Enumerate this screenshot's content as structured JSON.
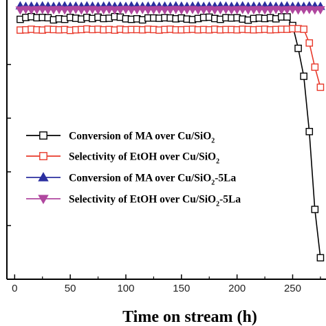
{
  "chart_data": {
    "type": "line",
    "xlabel": "Time on stream (h)",
    "ylabel": "",
    "xlim": [
      -7,
      280
    ],
    "ylim": [
      0,
      104
    ],
    "x_ticks": [
      0,
      50,
      100,
      150,
      200,
      250
    ],
    "x_tick_labels": [
      "0",
      "50",
      "100",
      "150",
      "200",
      "250"
    ],
    "grid": false,
    "legend_position": "center-left",
    "series": [
      {
        "name": "Conversion of MA over Cu/SiO2",
        "label_parts": [
          {
            "text": "Conversion of MA over Cu/SiO",
            "sub": false
          },
          {
            "text": "2",
            "sub": true
          }
        ],
        "color": "#000000",
        "marker": "open-square",
        "x": [
          5,
          10,
          15,
          20,
          25,
          30,
          35,
          40,
          45,
          50,
          55,
          60,
          65,
          70,
          75,
          80,
          85,
          90,
          95,
          100,
          105,
          110,
          115,
          120,
          125,
          130,
          135,
          140,
          145,
          150,
          155,
          160,
          165,
          170,
          175,
          180,
          185,
          190,
          195,
          200,
          205,
          210,
          215,
          220,
          225,
          230,
          235,
          240,
          245,
          250,
          255,
          260,
          265,
          270,
          275
        ],
        "y": [
          96.8,
          97.5,
          97.8,
          97.4,
          97.5,
          97.4,
          96.6,
          97.0,
          96.8,
          97.5,
          97.2,
          96.9,
          97.5,
          97.1,
          97.6,
          97.1,
          97.2,
          97.8,
          97.6,
          97.0,
          96.8,
          97.0,
          96.6,
          97.3,
          97.3,
          97.2,
          97.4,
          97.3,
          97.0,
          97.3,
          96.9,
          96.7,
          97.1,
          97.5,
          97.6,
          97.1,
          96.8,
          97.4,
          97.3,
          97.4,
          96.9,
          96.5,
          97.1,
          97.3,
          97.1,
          97.4,
          97.0,
          97.7,
          97.7,
          94.5,
          86.0,
          75.6,
          55.0,
          26.0,
          8.0
        ]
      },
      {
        "name": "Selectivity of EtOH over Cu/SiO2",
        "label_parts": [
          {
            "text": "Selectivity of EtOH over Cu/SiO",
            "sub": false
          },
          {
            "text": "2",
            "sub": true
          }
        ],
        "color": "#e8382a",
        "marker": "open-square",
        "x": [
          5,
          10,
          15,
          20,
          25,
          30,
          35,
          40,
          45,
          50,
          55,
          60,
          65,
          70,
          75,
          80,
          85,
          90,
          95,
          100,
          105,
          110,
          115,
          120,
          125,
          130,
          135,
          140,
          145,
          150,
          155,
          160,
          165,
          170,
          175,
          180,
          185,
          190,
          195,
          200,
          205,
          210,
          215,
          220,
          225,
          230,
          235,
          240,
          245,
          250,
          255,
          260,
          265,
          270,
          275
        ],
        "y": [
          92.8,
          92.9,
          93.1,
          92.9,
          92.8,
          93.1,
          93.0,
          92.9,
          93.0,
          92.7,
          92.9,
          93.0,
          93.2,
          93.0,
          93.1,
          92.9,
          93.0,
          92.8,
          93.1,
          92.9,
          93.0,
          93.0,
          92.9,
          93.1,
          93.0,
          92.8,
          93.0,
          93.1,
          92.9,
          92.9,
          93.0,
          93.1,
          92.9,
          93.0,
          92.9,
          93.1,
          92.9,
          93.0,
          93.0,
          92.9,
          93.1,
          93.0,
          92.9,
          93.0,
          93.1,
          92.9,
          93.0,
          93.1,
          93.1,
          93.3,
          93.3,
          93.1,
          88.0,
          79.0,
          71.5
        ]
      },
      {
        "name": "Conversion of MA over Cu/SiO2-5La",
        "label_parts": [
          {
            "text": "Conversion of MA over Cu/SiO",
            "sub": false
          },
          {
            "text": "2",
            "sub": true
          },
          {
            "text": "-5La",
            "sub": false
          }
        ],
        "color": "#2b2fa0",
        "marker": "filled-triangle-up",
        "x": [
          5,
          10,
          15,
          20,
          25,
          30,
          35,
          40,
          45,
          50,
          55,
          60,
          65,
          70,
          75,
          80,
          85,
          90,
          95,
          100,
          105,
          110,
          115,
          120,
          125,
          130,
          135,
          140,
          145,
          150,
          155,
          160,
          165,
          170,
          175,
          180,
          185,
          190,
          195,
          200,
          205,
          210,
          215,
          220,
          225,
          230,
          235,
          240,
          245,
          250,
          255,
          260,
          265,
          270,
          275
        ],
        "y": [
          101.8,
          101.6,
          101.7,
          101.6,
          101.8,
          101.7,
          101.6,
          101.7,
          101.8,
          101.6,
          101.7,
          101.6,
          101.8,
          101.7,
          101.6,
          101.7,
          101.8,
          101.6,
          101.7,
          101.6,
          101.8,
          101.7,
          101.6,
          101.7,
          101.8,
          101.6,
          101.7,
          101.6,
          101.8,
          101.7,
          101.6,
          101.7,
          101.8,
          101.6,
          101.7,
          101.6,
          101.8,
          101.7,
          101.6,
          101.7,
          101.8,
          101.6,
          101.7,
          101.6,
          101.8,
          101.7,
          101.6,
          101.7,
          101.8,
          101.6,
          101.7,
          101.6,
          101.8,
          101.7,
          101.6
        ]
      },
      {
        "name": "Selectivity of EtOH over Cu/SiO2-5La",
        "label_parts": [
          {
            "text": "Selectivity of EtOH over Cu/SiO",
            "sub": false
          },
          {
            "text": "2",
            "sub": true
          },
          {
            "text": "-5La",
            "sub": false
          }
        ],
        "color": "#b0479f",
        "marker": "filled-triangle-down",
        "x": [
          5,
          10,
          15,
          20,
          25,
          30,
          35,
          40,
          45,
          50,
          55,
          60,
          65,
          70,
          75,
          80,
          85,
          90,
          95,
          100,
          105,
          110,
          115,
          120,
          125,
          130,
          135,
          140,
          145,
          150,
          155,
          160,
          165,
          170,
          175,
          180,
          185,
          190,
          195,
          200,
          205,
          210,
          215,
          220,
          225,
          230,
          235,
          240,
          245,
          250,
          255,
          260,
          265,
          270,
          275
        ],
        "y": [
          100.3,
          100.5,
          100.3,
          100.4,
          100.5,
          100.3,
          100.4,
          100.5,
          100.3,
          100.4,
          100.5,
          100.3,
          100.4,
          100.5,
          100.3,
          100.4,
          100.5,
          100.3,
          100.4,
          100.5,
          100.3,
          100.4,
          100.5,
          100.3,
          100.4,
          100.5,
          100.3,
          100.4,
          100.5,
          100.3,
          100.4,
          100.5,
          100.3,
          100.4,
          100.5,
          100.3,
          100.4,
          100.5,
          100.3,
          100.4,
          100.5,
          100.3,
          100.4,
          100.5,
          100.3,
          100.4,
          100.5,
          100.3,
          100.4,
          100.5,
          100.3,
          100.4,
          100.5,
          100.3,
          100.4
        ]
      }
    ]
  }
}
